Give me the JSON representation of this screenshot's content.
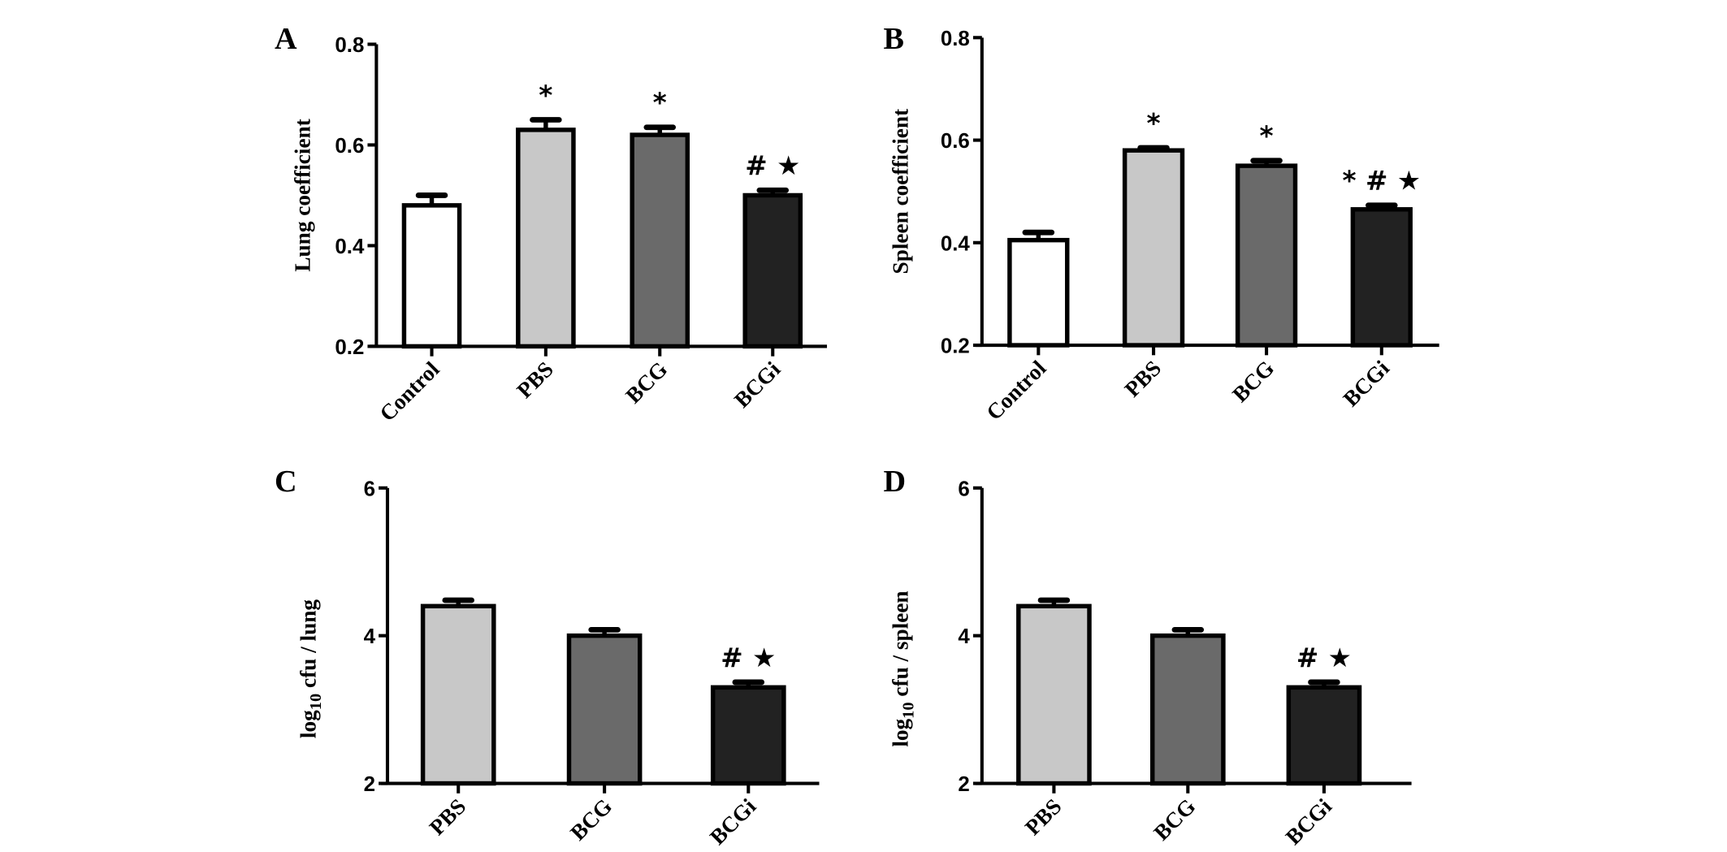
{
  "chart_data": [
    {
      "panel": "A",
      "type": "bar",
      "ylabel": "Lung coefficient",
      "ylim": [
        0.2,
        0.8
      ],
      "yticks": [
        "0.2",
        "0.4",
        "0.6",
        "0.8"
      ],
      "categories": [
        "Control",
        "PBS",
        "BCG",
        "BCGi"
      ],
      "values": [
        0.48,
        0.63,
        0.62,
        0.5
      ],
      "error_upper": [
        0.5,
        0.65,
        0.635,
        0.51
      ],
      "annotations": [
        "",
        "*",
        "*",
        "# ★"
      ],
      "colors": [
        "#ffffff",
        "#c8c8c8",
        "#6a6a6a",
        "#222222"
      ]
    },
    {
      "panel": "B",
      "type": "bar",
      "ylabel": "Spleen coefficient",
      "ylim": [
        0.2,
        0.8
      ],
      "yticks": [
        "0.2",
        "0.4",
        "0.6",
        "0.8"
      ],
      "categories": [
        "Control",
        "PBS",
        "BCG",
        "BCGi"
      ],
      "values": [
        0.405,
        0.58,
        0.55,
        0.465
      ],
      "error_upper": [
        0.42,
        0.585,
        0.56,
        0.473
      ],
      "annotations": [
        "",
        "*",
        "*",
        "* # ★"
      ],
      "colors": [
        "#ffffff",
        "#c8c8c8",
        "#6a6a6a",
        "#222222"
      ]
    },
    {
      "panel": "C",
      "type": "bar",
      "ylabel": "log10 cfu / lung",
      "ylim": [
        2,
        6
      ],
      "yticks": [
        "2",
        "4",
        "6"
      ],
      "categories": [
        "PBS",
        "BCG",
        "BCGi"
      ],
      "values": [
        4.4,
        4.0,
        3.3
      ],
      "error_upper": [
        4.48,
        4.08,
        3.37
      ],
      "annotations": [
        "",
        "",
        "#  ★"
      ],
      "colors": [
        "#c8c8c8",
        "#6a6a6a",
        "#222222"
      ]
    },
    {
      "panel": "D",
      "type": "bar",
      "ylabel": "log10 cfu / spleen",
      "ylim": [
        2,
        6
      ],
      "yticks": [
        "2",
        "4",
        "6"
      ],
      "categories": [
        "PBS",
        "BCG",
        "BCGi"
      ],
      "values": [
        4.4,
        4.0,
        3.3
      ],
      "error_upper": [
        4.48,
        4.08,
        3.37
      ],
      "annotations": [
        "",
        "",
        "#  ★"
      ],
      "colors": [
        "#c8c8c8",
        "#6a6a6a",
        "#222222"
      ]
    }
  ]
}
